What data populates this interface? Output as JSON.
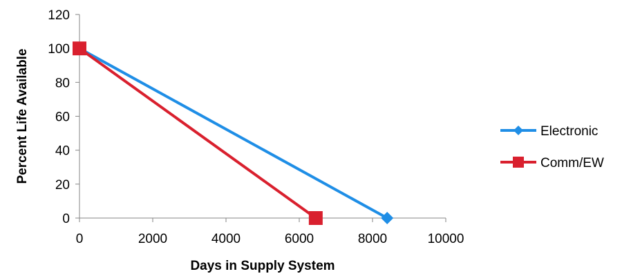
{
  "chart_data": {
    "type": "line",
    "xlabel": "Days in Supply System",
    "ylabel": "Percent Life Available",
    "xlim": [
      0,
      10000
    ],
    "ylim": [
      0,
      120
    ],
    "xticks": [
      0,
      2000,
      4000,
      6000,
      8000,
      10000
    ],
    "yticks": [
      0,
      20,
      40,
      60,
      80,
      100,
      120
    ],
    "grid": false,
    "legend_position": "right",
    "series": [
      {
        "name": "Electronic",
        "color": "#1f8ee6",
        "marker": "diamond",
        "points": [
          [
            0,
            100
          ],
          [
            8400,
            0
          ]
        ]
      },
      {
        "name": "Comm/EW",
        "color": "#d9202e",
        "marker": "square",
        "points": [
          [
            0,
            100
          ],
          [
            6450,
            0
          ]
        ]
      }
    ]
  }
}
